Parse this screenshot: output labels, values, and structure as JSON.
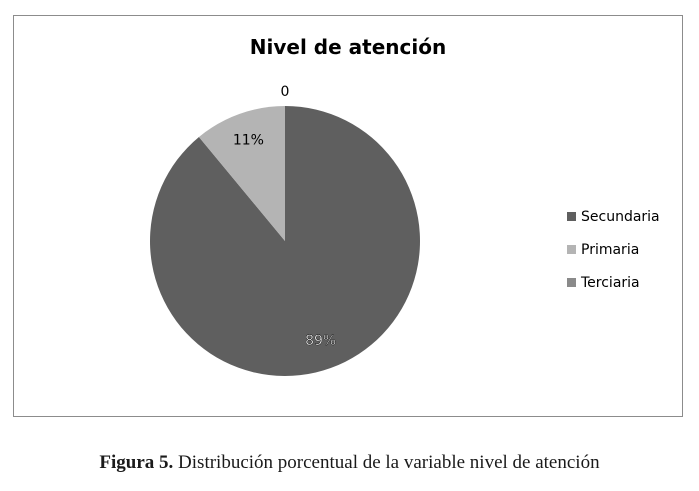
{
  "chart_data": {
    "type": "pie",
    "title": "Nivel de atención",
    "categories": [
      "Secundaria",
      "Primaria",
      "Terciaria"
    ],
    "values": [
      89,
      11,
      0
    ],
    "data_labels": [
      "89%",
      "11%",
      "0"
    ],
    "colors": [
      "#5f5f5f",
      "#b4b4b4",
      "#8a8a8a"
    ],
    "legend_position": "right"
  },
  "caption": {
    "label": "Figura 5.",
    "text": "Distribución porcentual de la variable nivel de atención"
  }
}
